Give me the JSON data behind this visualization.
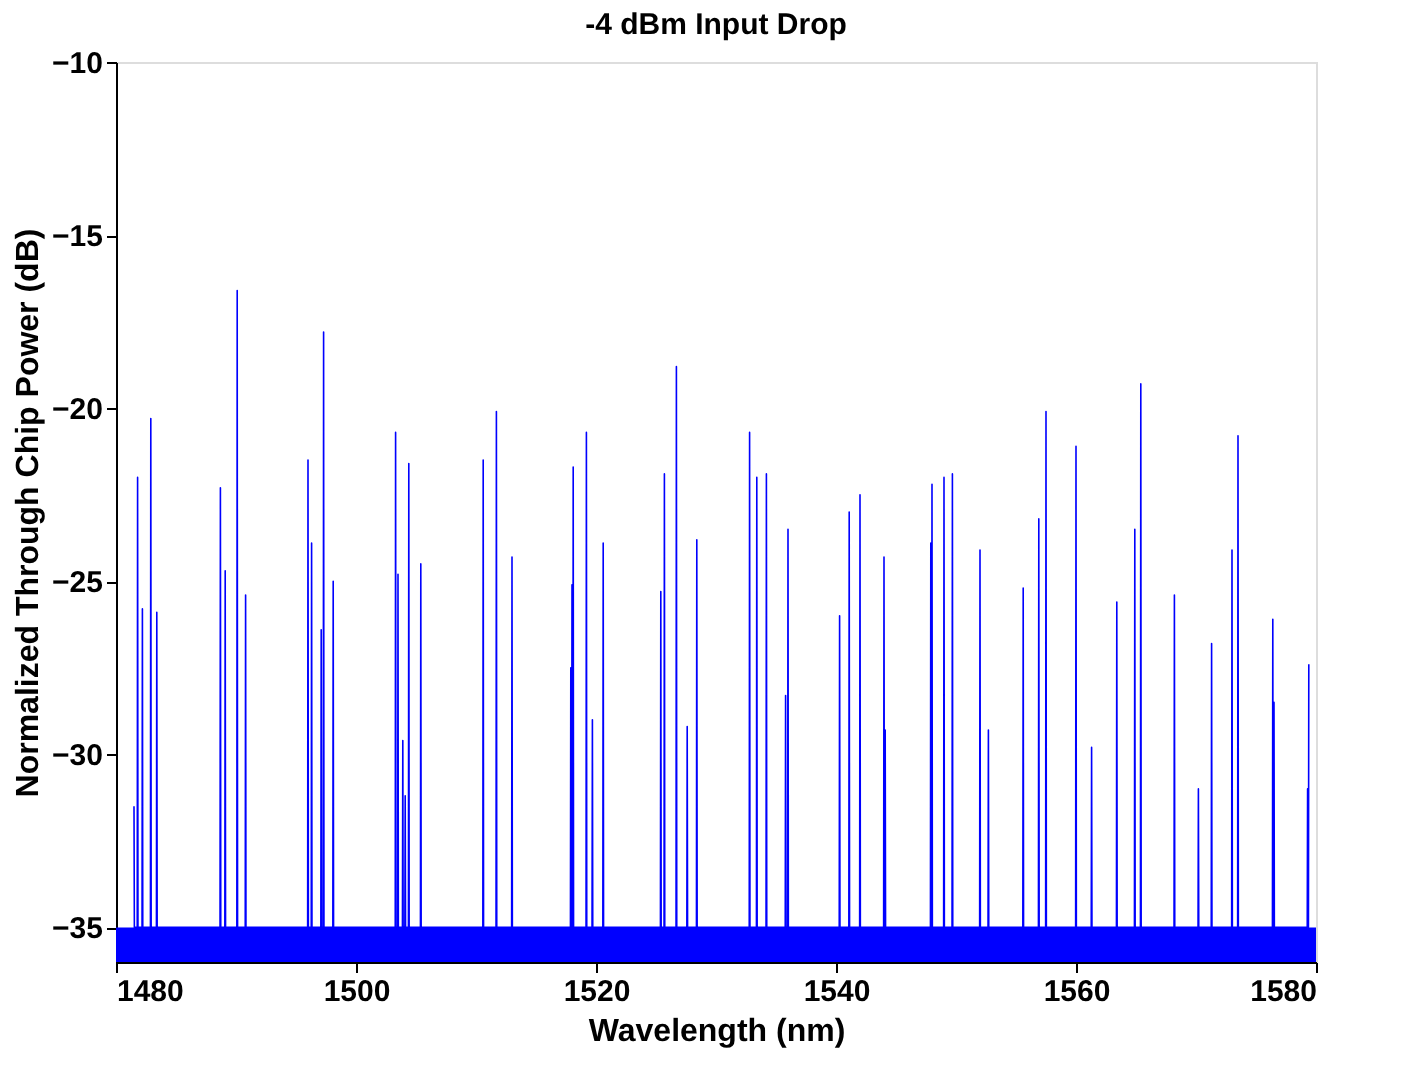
{
  "chart_data": {
    "type": "line",
    "title": "-4 dBm Input Drop",
    "xlabel": "Wavelength (nm)",
    "ylabel": "Normalized Through Chip Power (dB)",
    "xlim": [
      1480,
      1580
    ],
    "xticks": [
      1480,
      1500,
      1520,
      1540,
      1560,
      1580
    ],
    "ylim": [
      -36,
      -10
    ],
    "yticks": [
      -35,
      -30,
      -25,
      -20,
      -15,
      -10
    ],
    "grid": false,
    "marker": "none",
    "line_style": "solid",
    "bands": [
      {
        "axis": "y",
        "from": -36,
        "to": -35,
        "color": "#0000ff"
      }
    ],
    "series": [
      {
        "color": "#0000ff",
        "x": [
          1481.5,
          1481.53,
          1481.77,
          1481.8,
          1481.83,
          1482.17,
          1482.2,
          1482.23,
          1482.87,
          1482.9,
          1482.93,
          1483.37,
          1483.4,
          1483.43,
          1488.67,
          1488.7,
          1488.73,
          1489.07,
          1489.1,
          1489.13,
          1490.07,
          1490.1,
          1490.13,
          1490.77,
          1490.8,
          1490.83,
          1495.97,
          1496.0,
          1496.03,
          1496.27,
          1496.3,
          1496.33,
          1497.07,
          1497.1,
          1497.13,
          1497.27,
          1497.3,
          1497.33,
          1498.07,
          1498.1,
          1498.13,
          1503.27,
          1503.3,
          1503.33,
          1503.47,
          1503.5,
          1503.53,
          1503.87,
          1503.9,
          1503.93,
          1504.07,
          1504.1,
          1504.13,
          1504.37,
          1504.4,
          1504.43,
          1505.37,
          1505.4,
          1505.43,
          1510.57,
          1510.6,
          1510.63,
          1511.67,
          1511.7,
          1511.73,
          1512.97,
          1513.0,
          1513.03,
          1517.87,
          1517.9,
          1517.93,
          1517.97,
          1518.0,
          1518.03,
          1518.07,
          1518.1,
          1518.13,
          1519.17,
          1519.2,
          1519.23,
          1519.67,
          1519.7,
          1519.73,
          1520.57,
          1520.6,
          1520.63,
          1525.37,
          1525.4,
          1525.43,
          1525.67,
          1525.7,
          1525.73,
          1526.67,
          1526.7,
          1526.73,
          1527.57,
          1527.6,
          1527.63,
          1528.37,
          1528.4,
          1528.43,
          1532.77,
          1532.8,
          1532.83,
          1533.37,
          1533.4,
          1533.43,
          1534.17,
          1534.2,
          1534.23,
          1535.77,
          1535.8,
          1535.83,
          1535.97,
          1536.0,
          1536.03,
          1540.27,
          1540.3,
          1540.33,
          1541.07,
          1541.1,
          1541.13,
          1541.97,
          1542.0,
          1542.03,
          1543.97,
          1544.0,
          1544.03,
          1544.07,
          1544.1,
          1544.13,
          1547.87,
          1547.9,
          1547.93,
          1547.97,
          1548.0,
          1548.03,
          1548.97,
          1549.0,
          1549.03,
          1549.67,
          1549.7,
          1549.73,
          1551.97,
          1552.0,
          1552.03,
          1552.67,
          1552.7,
          1552.73,
          1555.57,
          1555.6,
          1555.63,
          1556.87,
          1556.9,
          1556.93,
          1557.47,
          1557.5,
          1557.53,
          1559.97,
          1560.0,
          1560.03,
          1561.27,
          1561.3,
          1561.33,
          1563.37,
          1563.4,
          1563.43,
          1564.87,
          1564.9,
          1564.93,
          1565.37,
          1565.4,
          1565.43,
          1568.17,
          1568.2,
          1568.23,
          1570.17,
          1570.2,
          1570.23,
          1571.27,
          1571.3,
          1571.33,
          1572.97,
          1573.0,
          1573.03,
          1573.47,
          1573.5,
          1573.53,
          1576.37,
          1576.4,
          1576.43,
          1576.47,
          1576.5,
          1576.53,
          1579.27,
          1579.3,
          1579.33,
          1579.37,
          1579.4
        ],
        "values": [
          -31.5,
          -35,
          -35,
          -22.0,
          -35,
          -35,
          -25.8,
          -35,
          -35,
          -20.3,
          -35,
          -35,
          -25.9,
          -35,
          -35,
          -22.3,
          -35,
          -35,
          -24.7,
          -35,
          -35,
          -16.6,
          -35,
          -35,
          -25.4,
          -35,
          -35,
          -21.5,
          -35,
          -35,
          -23.9,
          -35,
          -35,
          -26.4,
          -35,
          -35,
          -17.8,
          -35,
          -35,
          -25.0,
          -35,
          -35,
          -20.7,
          -35,
          -35,
          -24.8,
          -35,
          -35,
          -29.6,
          -35,
          -35,
          -31.2,
          -35,
          -35,
          -21.6,
          -35,
          -35,
          -24.5,
          -35,
          -35,
          -21.5,
          -35,
          -35,
          -20.1,
          -35,
          -35,
          -24.3,
          -35,
          -35,
          -27.5,
          -35,
          -35,
          -25.1,
          -35,
          -35,
          -21.7,
          -35,
          -35,
          -20.7,
          -35,
          -35,
          -29.0,
          -35,
          -35,
          -23.9,
          -35,
          -35,
          -25.3,
          -35,
          -35,
          -21.9,
          -35,
          -35,
          -18.8,
          -35,
          -35,
          -29.2,
          -35,
          -35,
          -23.8,
          -35,
          -35,
          -20.7,
          -35,
          -35,
          -22.0,
          -35,
          -35,
          -21.9,
          -35,
          -35,
          -28.3,
          -35,
          -35,
          -23.5,
          -35,
          -35,
          -26.0,
          -35,
          -35,
          -23.0,
          -35,
          -35,
          -22.5,
          -35,
          -35,
          -24.3,
          -35,
          -35,
          -29.3,
          -35,
          -35,
          -23.9,
          -35,
          -35,
          -22.2,
          -35,
          -35,
          -22.0,
          -35,
          -35,
          -21.9,
          -35,
          -35,
          -24.1,
          -35,
          -35,
          -29.3,
          -35,
          -35,
          -25.2,
          -35,
          -35,
          -23.2,
          -35,
          -35,
          -20.1,
          -35,
          -35,
          -21.1,
          -35,
          -35,
          -29.8,
          -35,
          -35,
          -25.6,
          -35,
          -35,
          -23.5,
          -35,
          -35,
          -19.3,
          -35,
          -35,
          -25.4,
          -35,
          -35,
          -31.0,
          -35,
          -35,
          -26.8,
          -35,
          -35,
          -24.1,
          -35,
          -35,
          -20.8,
          -35,
          -35,
          -26.1,
          -35,
          -35,
          -28.5,
          -35,
          -35,
          -31.0,
          -35,
          -35,
          -27.4
        ]
      }
    ]
  }
}
